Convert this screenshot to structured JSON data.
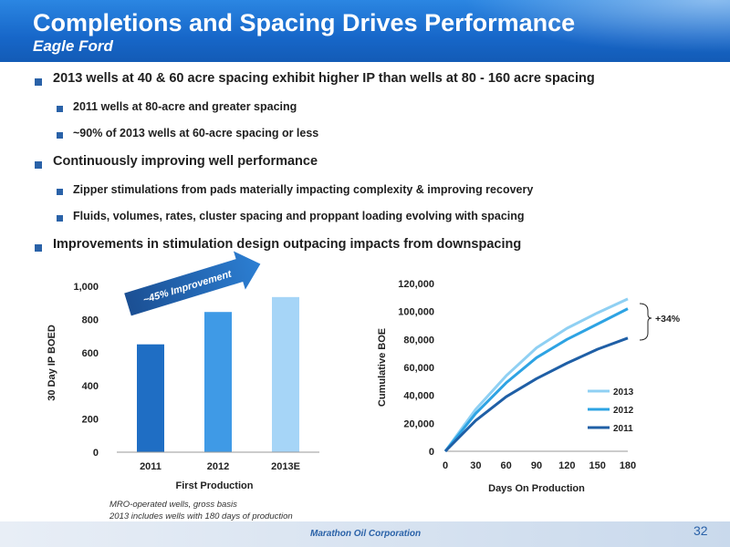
{
  "header": {
    "title": "Completions and Spacing Drives Performance",
    "subtitle": "Eagle Ford"
  },
  "bullets": [
    {
      "level": 1,
      "text": "2013 wells at 40 & 60 acre spacing exhibit higher IP than wells at 80 - 160 acre spacing"
    },
    {
      "level": 2,
      "text": "2011 wells at 80-acre and greater spacing"
    },
    {
      "level": 2,
      "text": "~90% of 2013 wells at 60-acre spacing or less"
    },
    {
      "level": 1,
      "text": "Continuously improving well performance"
    },
    {
      "level": 2,
      "text": "Zipper stimulations from pads materially impacting complexity & improving recovery"
    },
    {
      "level": 2,
      "text": "Fluids, volumes, rates, cluster spacing and proppant loading evolving with spacing"
    },
    {
      "level": 1,
      "text": "Improvements in stimulation design outpacing impacts from downspacing"
    }
  ],
  "chart_data": [
    {
      "type": "bar",
      "categories": [
        "2011",
        "2012",
        "2013E"
      ],
      "values": [
        650,
        845,
        935
      ],
      "xlabel": "First Production",
      "ylabel": "30 Day IP BOED",
      "ylim": [
        0,
        1000
      ],
      "yticks": [
        "0",
        "200",
        "400",
        "600",
        "800",
        "1,000"
      ],
      "annotation": "~45% Improvement",
      "colors": [
        "#1f6ec4",
        "#3f9ae6",
        "#a6d5f7"
      ]
    },
    {
      "type": "line",
      "x": [
        0,
        30,
        60,
        90,
        120,
        150,
        180
      ],
      "series": [
        {
          "name": "2013",
          "color": "#8fd0f3",
          "values": [
            0,
            30000,
            54000,
            74000,
            88000,
            99000,
            109000
          ]
        },
        {
          "name": "2012",
          "color": "#2da3e3",
          "values": [
            0,
            27000,
            49000,
            67000,
            80000,
            91000,
            102000
          ]
        },
        {
          "name": "2011",
          "color": "#1f5fa6",
          "values": [
            0,
            22000,
            39000,
            52000,
            63000,
            73000,
            81000
          ]
        }
      ],
      "xlabel": "Days On Production",
      "ylabel": "Cumulative BOE",
      "xticks": [
        "0",
        "30",
        "60",
        "90",
        "120",
        "150",
        "180"
      ],
      "yticks": [
        "0",
        "20,000",
        "40,000",
        "60,000",
        "80,000",
        "100,000",
        "120,000"
      ],
      "xlim": [
        0,
        180
      ],
      "ylim": [
        0,
        120000
      ],
      "annotation": "+34%",
      "legend_placement": "bottom-right"
    }
  ],
  "notes": [
    "MRO-operated wells, gross basis",
    "2013 includes wells with 180 days of production"
  ],
  "footer": {
    "company": "Marathon Oil Corporation",
    "page": "32"
  }
}
